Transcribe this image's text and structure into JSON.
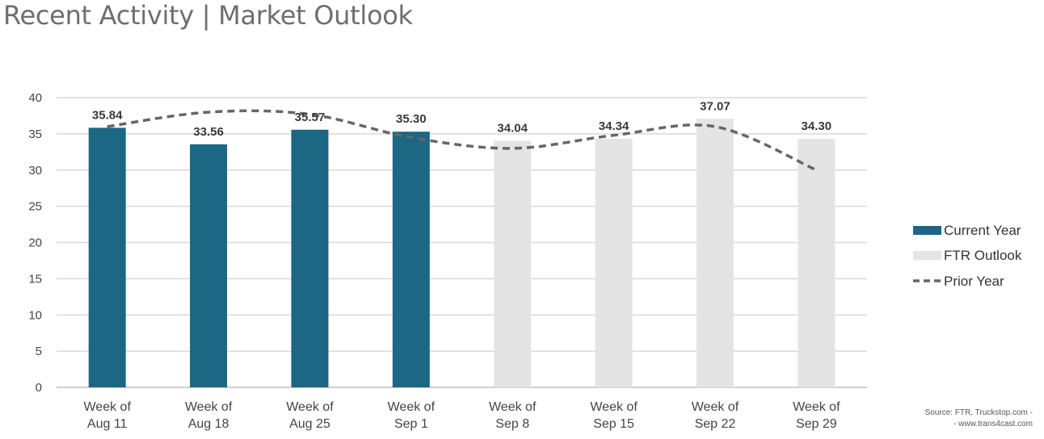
{
  "page_title": "Recent Activity | Market Outlook",
  "source_line1": "Source: FTR, Truckstop.com -",
  "source_line2": "- www.trans4cast.com",
  "chart_data": {
    "type": "bar",
    "categories": [
      [
        "Week of",
        "Aug 11"
      ],
      [
        "Week of",
        "Aug 18"
      ],
      [
        "Week of",
        "Aug 25"
      ],
      [
        "Week of",
        "Sep 1"
      ],
      [
        "Week of",
        "Sep 8"
      ],
      [
        "Week of",
        "Sep 15"
      ],
      [
        "Week of",
        "Sep 22"
      ],
      [
        "Week of",
        "Sep 29"
      ]
    ],
    "series": [
      {
        "name": "Current Year",
        "kind": "bar",
        "color": "#1b6784",
        "values": [
          35.84,
          33.56,
          35.57,
          35.3,
          null,
          null,
          null,
          null
        ]
      },
      {
        "name": "FTR Outlook",
        "kind": "bar",
        "color": "#e4e4e4",
        "values": [
          null,
          null,
          null,
          null,
          34.04,
          34.34,
          37.07,
          34.3
        ]
      },
      {
        "name": "Prior Year",
        "kind": "line",
        "style": "dashed",
        "color": "#666666",
        "values": [
          36.0,
          38.0,
          37.7,
          34.5,
          33.0,
          34.8,
          36.0,
          30.0
        ]
      }
    ],
    "data_labels": [
      "35.84",
      "33.56",
      "35.57",
      "35.30",
      "34.04",
      "34.34",
      "37.07",
      "34.30"
    ],
    "yticks": [
      "0",
      "5",
      "10",
      "15",
      "20",
      "25",
      "30",
      "35",
      "40"
    ],
    "ylim": [
      0,
      40
    ],
    "grid": true,
    "legend_position": "right"
  }
}
